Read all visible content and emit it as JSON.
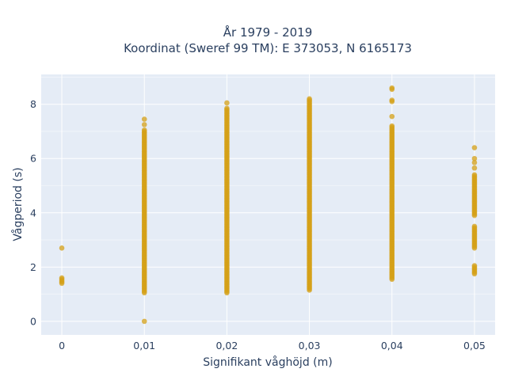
{
  "chart_data": {
    "type": "scatter",
    "title_lines": [
      "År 1979 - 2019",
      "Koordinat (Sweref 99 TM): E 373053, N 6165173"
    ],
    "xlabel": "Signifikant våghöjd (m)",
    "ylabel": "Vågperiod (s)",
    "x_ticks": [
      "0",
      "0,01",
      "0,02",
      "0,03",
      "0,04",
      "0,05"
    ],
    "y_ticks": [
      "0",
      "2",
      "4",
      "6",
      "8"
    ],
    "xlim": [
      -0.0025,
      0.0525
    ],
    "ylim": [
      -0.5,
      9.1
    ],
    "grid": true,
    "marker_color": "#d4a017",
    "plot_bg": "#e5ecf6",
    "series": [
      {
        "clusters": [
          {
            "x": 0.0,
            "dense_ranges": [
              [
                1.4,
                1.6
              ]
            ],
            "points": [
              2.7
            ]
          },
          {
            "x": 0.01,
            "dense_ranges": [
              [
                1.05,
                7.05
              ]
            ],
            "points": [
              0.0,
              7.25,
              7.45
            ]
          },
          {
            "x": 0.02,
            "dense_ranges": [
              [
                1.05,
                7.85
              ]
            ],
            "points": [
              8.05
            ]
          },
          {
            "x": 0.03,
            "dense_ranges": [
              [
                1.15,
                8.2
              ]
            ],
            "points": []
          },
          {
            "x": 0.04,
            "dense_ranges": [
              [
                1.55,
                7.2
              ]
            ],
            "points": [
              7.55,
              8.1,
              8.15,
              8.55,
              8.6
            ]
          },
          {
            "x": 0.05,
            "dense_ranges": [
              [
                1.75,
                2.05
              ],
              [
                2.7,
                3.5
              ],
              [
                3.9,
                5.4
              ]
            ],
            "points": [
              5.65,
              5.85,
              6.0,
              6.4
            ]
          }
        ]
      }
    ]
  }
}
